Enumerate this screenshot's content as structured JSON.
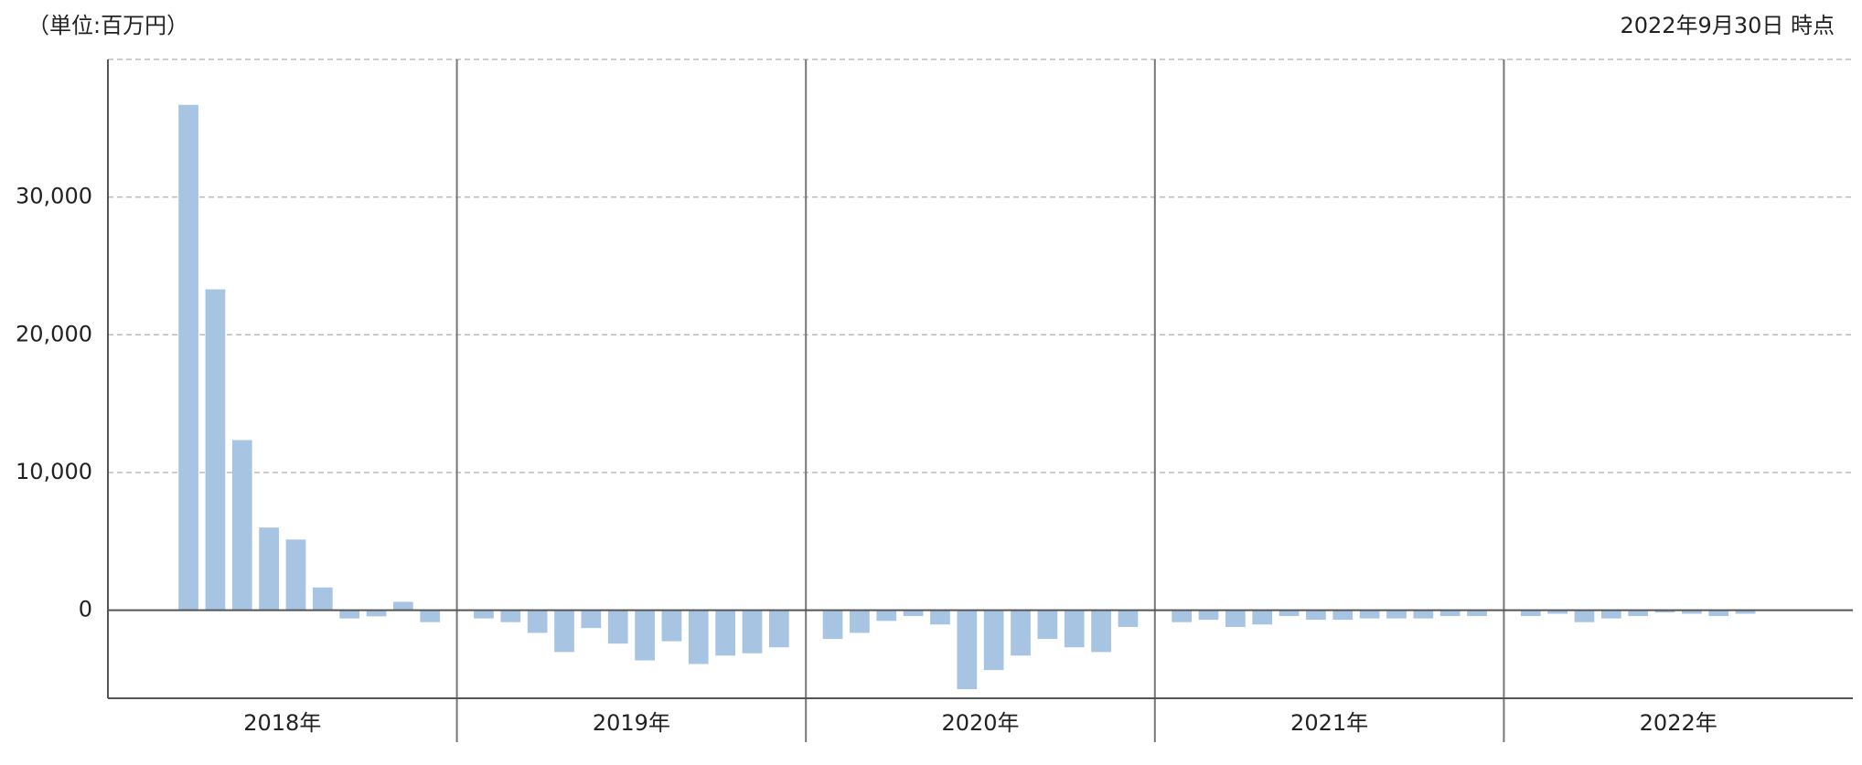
{
  "chart_data": {
    "type": "bar",
    "unit_label": "（単位:百万円）",
    "date_label": "2022年9月30日 時点",
    "color": "#a7c5e3",
    "grid": true,
    "ylim": [
      -6400,
      40000
    ],
    "yticks": [
      0,
      {
        "value": 10000,
        "label": "10,000"
      },
      {
        "value": 20000,
        "label": "20,000"
      },
      {
        "value": 30000,
        "label": "30,000"
      }
    ],
    "groups": [
      {
        "label": "2018年",
        "values": [
          36700,
          23300,
          12350,
          6000,
          5130,
          1650,
          -600,
          -450,
          610,
          -870
        ]
      },
      {
        "label": "2019年",
        "values": [
          -600,
          -870,
          -1650,
          -3040,
          -1300,
          -2430,
          -3650,
          -2260,
          -3910,
          -3300,
          -3130,
          -2700
        ]
      },
      {
        "label": "2020年",
        "values": [
          -2090,
          -1650,
          -780,
          -430,
          -1040,
          -5740,
          -4350,
          -3300,
          -2090,
          -2700,
          -3040,
          -1220
        ]
      },
      {
        "label": "2021年",
        "values": [
          -870,
          -700,
          -1220,
          -1040,
          -430,
          -700,
          -700,
          -600,
          -600,
          -600,
          -430,
          -430
        ]
      },
      {
        "label": "2022年",
        "values": [
          -430,
          -260,
          -870,
          -600,
          -430,
          -170,
          -260,
          -430,
          -260
        ]
      }
    ]
  }
}
